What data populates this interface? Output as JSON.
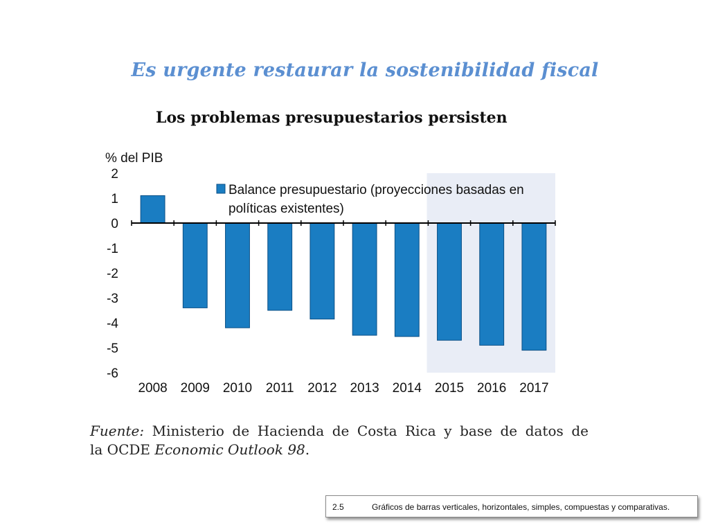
{
  "slide": {
    "title": "Es urgente restaurar la sostenibilidad fiscal"
  },
  "chart_data": {
    "type": "bar",
    "title": "Los problemas presupuestarios persisten",
    "ylabel": "% del PIB",
    "xlabel": "",
    "categories": [
      "2008",
      "2009",
      "2010",
      "2011",
      "2012",
      "2013",
      "2014",
      "2015",
      "2016",
      "2017"
    ],
    "series": [
      {
        "name": "Balance presupuestario (proyecciones basadas en políticas existentes)",
        "legend_lines": [
          "Balance presupuestario (proyecciones basadas en",
          "políticas existentes)"
        ],
        "values": [
          1.1,
          -3.4,
          -4.2,
          -3.5,
          -3.85,
          -4.5,
          -4.55,
          -4.7,
          -4.9,
          -5.1
        ]
      }
    ],
    "ylim": [
      -6,
      2
    ],
    "yticks": [
      "2",
      "1",
      "0",
      "-1",
      "-2",
      "-3",
      "-4",
      "-5",
      "-6"
    ],
    "projection_shaded_from": "2015",
    "legend_position": "top",
    "grid": false,
    "colors": {
      "bar": "#1a7dc2",
      "bar_border": "#0b4f86",
      "projection_band": "#e9edf6",
      "axis": "#000000"
    }
  },
  "source": {
    "label": "Fuente:",
    "line1_text": " Ministerio de Hacienda de Costa Rica y base de datos de",
    "line2_text": "la OCDE ",
    "publication": "Economic Outlook 98",
    "end": "."
  },
  "caption": {
    "number": "2.5",
    "text": "Gráficos de barras verticales, horizontales, simples, compuestas y comparativas."
  }
}
